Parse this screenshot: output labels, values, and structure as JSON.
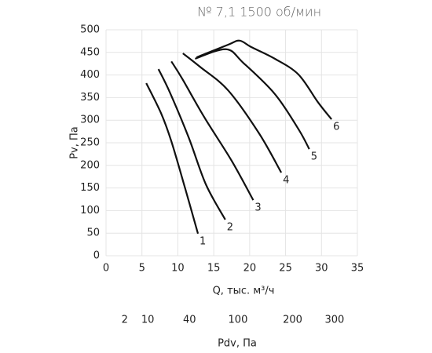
{
  "chart_data": {
    "type": "line",
    "title": "№ 7,1 1500 об/мин",
    "xlabel": "Q, тыс. м³/ч",
    "ylabel": "Pv, Па",
    "x2label": "Pdv, Па",
    "xlim": [
      0,
      35
    ],
    "xticks": [
      0,
      5,
      10,
      15,
      20,
      25,
      30,
      35
    ],
    "ylim": [
      0,
      500
    ],
    "yticks": [
      0,
      50,
      100,
      150,
      200,
      250,
      300,
      350,
      400,
      450,
      500
    ],
    "x2scale": "sqrt",
    "x2lim": [
      0,
      363
    ],
    "x2ticks": [
      2,
      10,
      40,
      100,
      200,
      300
    ],
    "grid": true,
    "series": [
      {
        "name": "1",
        "color": "#111111",
        "x": [
          5.6,
          7.7,
          9.1,
          11.0,
          12.8
        ],
        "values": [
          382,
          314,
          253,
          150,
          49
        ]
      },
      {
        "name": "2",
        "color": "#111111",
        "x": [
          7.3,
          8.9,
          11.5,
          13.9,
          16.6
        ],
        "values": [
          413,
          361,
          262,
          158,
          80
        ]
      },
      {
        "name": "3",
        "color": "#111111",
        "x": [
          9.1,
          10.6,
          13.7,
          17.5,
          20.5
        ],
        "values": [
          430,
          392,
          306,
          210,
          123
        ]
      },
      {
        "name": "4",
        "color": "#111111",
        "x": [
          10.7,
          13.1,
          17.0,
          21.3,
          24.4
        ],
        "values": [
          448,
          418,
          366,
          271,
          184
        ]
      },
      {
        "name": "5",
        "color": "#111111",
        "x": [
          12.4,
          16.7,
          19.1,
          23.5,
          26.8,
          28.3
        ],
        "values": [
          436,
          457,
          427,
          358,
          280,
          236
        ]
      },
      {
        "name": "6",
        "color": "#111111",
        "x": [
          12.6,
          17.0,
          18.6,
          20.2,
          23.5,
          26.8,
          29.5,
          31.4
        ],
        "values": [
          439,
          467,
          476,
          462,
          436,
          401,
          340,
          302
        ]
      }
    ]
  }
}
